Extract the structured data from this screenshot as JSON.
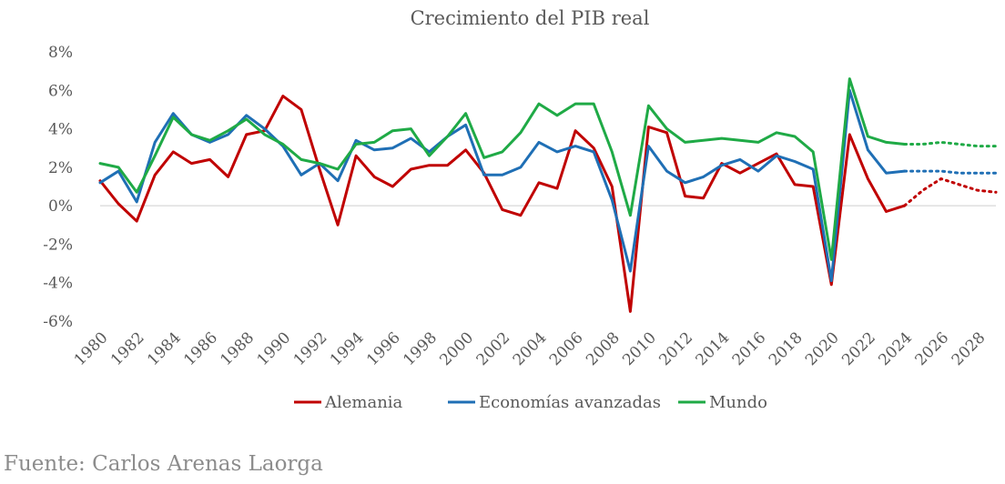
{
  "source": "Fuente: Carlos Arenas Laorga",
  "chart_data": {
    "type": "line",
    "title": "Crecimiento del PIB real",
    "xlabel": "",
    "ylabel": "",
    "ylim": [
      -6,
      8
    ],
    "xlim": [
      1980,
      2029
    ],
    "yticks": [
      8,
      6,
      4,
      2,
      0,
      -2,
      -4,
      -6
    ],
    "ytick_labels": [
      "8%",
      "6%",
      "4%",
      "2%",
      "0%",
      "-2%",
      "-4%",
      "-6%"
    ],
    "xticks": [
      1980,
      1982,
      1984,
      1986,
      1988,
      1990,
      1992,
      1994,
      1996,
      1998,
      2000,
      2002,
      2004,
      2006,
      2008,
      2010,
      2012,
      2014,
      2016,
      2018,
      2020,
      2022,
      2024,
      2026,
      2028
    ],
    "xtick_labels": [
      "1980",
      "1982",
      "1984",
      "1986",
      "1988",
      "1990",
      "1992",
      "1994",
      "1996",
      "1998",
      "2000",
      "2002",
      "2004",
      "2006",
      "2008",
      "2010",
      "2012",
      "2014",
      "2016",
      "2018",
      "2020",
      "2022",
      "2024",
      "2026",
      "2028"
    ],
    "x": [
      1980,
      1981,
      1982,
      1983,
      1984,
      1985,
      1986,
      1987,
      1988,
      1989,
      1990,
      1991,
      1992,
      1993,
      1994,
      1995,
      1996,
      1997,
      1998,
      1999,
      2000,
      2001,
      2002,
      2003,
      2004,
      2005,
      2006,
      2007,
      2008,
      2009,
      2010,
      2011,
      2012,
      2013,
      2014,
      2015,
      2016,
      2017,
      2018,
      2019,
      2020,
      2021,
      2022,
      2023,
      2024
    ],
    "forecast_x": [
      2024,
      2025,
      2026,
      2027,
      2028,
      2029
    ],
    "legend": "bottom",
    "grid": false,
    "series": [
      {
        "name": "Alemania",
        "color": "#c00000",
        "values": [
          1.3,
          0.1,
          -0.8,
          1.6,
          2.8,
          2.2,
          2.4,
          1.5,
          3.7,
          3.9,
          5.7,
          5.0,
          1.9,
          -1.0,
          2.6,
          1.5,
          1.0,
          1.9,
          2.1,
          2.1,
          2.9,
          1.7,
          -0.2,
          -0.5,
          1.2,
          0.9,
          3.9,
          3.0,
          1.0,
          -5.5,
          4.1,
          3.8,
          0.5,
          0.4,
          2.2,
          1.7,
          2.2,
          2.7,
          1.1,
          1.0,
          -4.1,
          3.7,
          1.4,
          -0.3,
          0.0
        ],
        "forecast": [
          0.0,
          0.8,
          1.4,
          1.1,
          0.8,
          0.7
        ]
      },
      {
        "name": "Economías avanzadas",
        "color": "#1f6fb5",
        "values": [
          1.2,
          1.8,
          0.2,
          3.3,
          4.8,
          3.7,
          3.3,
          3.7,
          4.7,
          4.0,
          3.1,
          1.6,
          2.2,
          1.3,
          3.4,
          2.9,
          3.0,
          3.5,
          2.8,
          3.6,
          4.2,
          1.6,
          1.6,
          2.0,
          3.3,
          2.8,
          3.1,
          2.8,
          0.3,
          -3.4,
          3.1,
          1.8,
          1.2,
          1.5,
          2.1,
          2.4,
          1.8,
          2.6,
          2.3,
          1.9,
          -3.9,
          6.0,
          2.9,
          1.7,
          1.8
        ],
        "forecast": [
          1.8,
          1.8,
          1.8,
          1.7,
          1.7,
          1.7
        ]
      },
      {
        "name": "Mundo",
        "color": "#1faa46",
        "values": [
          2.2,
          2.0,
          0.7,
          2.6,
          4.6,
          3.7,
          3.4,
          3.9,
          4.5,
          3.7,
          3.2,
          2.4,
          2.2,
          1.9,
          3.2,
          3.3,
          3.9,
          4.0,
          2.6,
          3.6,
          4.8,
          2.5,
          2.8,
          3.8,
          5.3,
          4.7,
          5.3,
          5.3,
          2.8,
          -0.5,
          5.2,
          4.0,
          3.3,
          3.4,
          3.5,
          3.4,
          3.3,
          3.8,
          3.6,
          2.8,
          -2.8,
          6.6,
          3.6,
          3.3,
          3.2
        ],
        "forecast": [
          3.2,
          3.2,
          3.3,
          3.2,
          3.1,
          3.1
        ]
      }
    ]
  }
}
